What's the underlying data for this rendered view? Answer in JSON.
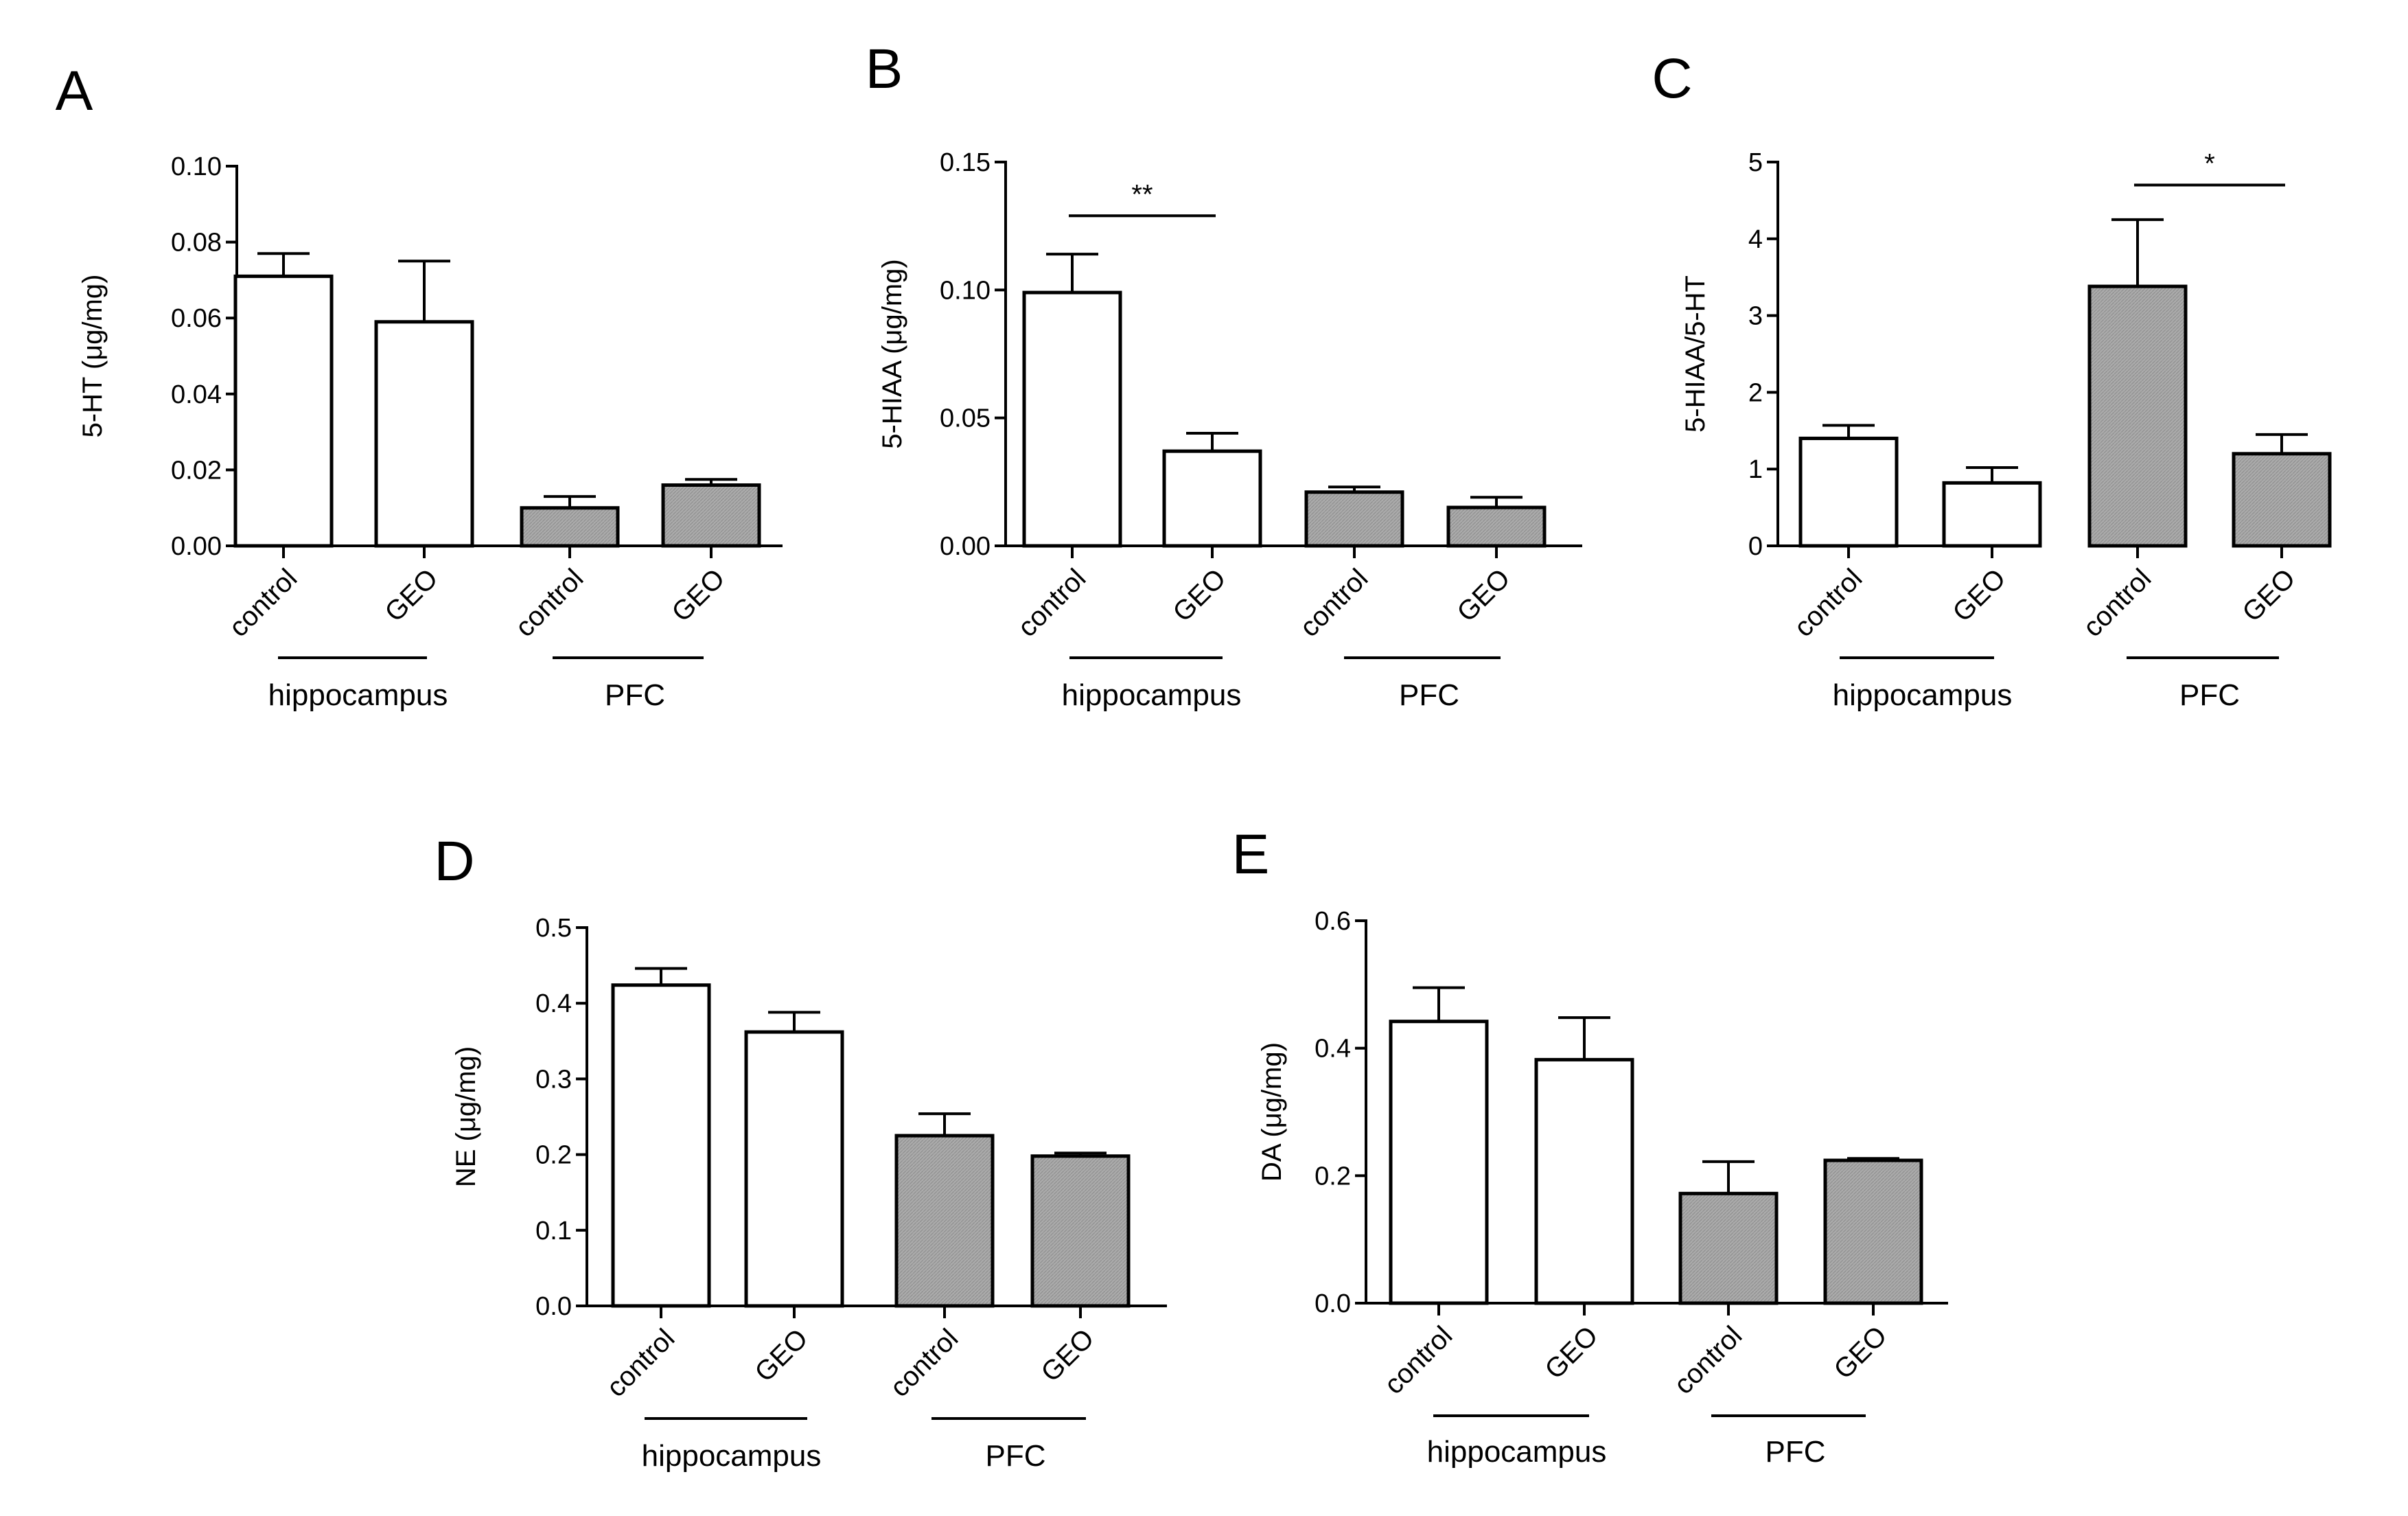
{
  "figure": {
    "panels": [
      "A",
      "B",
      "C",
      "D",
      "E"
    ]
  },
  "colors": {
    "axis": "#000000",
    "control_fill": "#ffffff",
    "pfc_fill": "#a8a8a8",
    "bar_stroke": "#000000"
  },
  "chart_data": [
    {
      "panel": "A",
      "type": "bar",
      "categories": [
        "control",
        "GEO",
        "control",
        "GEO"
      ],
      "groups": [
        {
          "label": "hippocampus",
          "indices": [
            0,
            1
          ]
        },
        {
          "label": "PFC",
          "indices": [
            2,
            3
          ]
        }
      ],
      "values": [
        0.071,
        0.059,
        0.01,
        0.016
      ],
      "errors": [
        0.006,
        0.016,
        0.003,
        0.0015
      ],
      "fills": [
        "white",
        "white",
        "gray",
        "gray"
      ],
      "ylabel": "5-HT (μg/mg)",
      "ylim": [
        0,
        0.1
      ],
      "yticks": [
        0.0,
        0.02,
        0.04,
        0.06,
        0.08,
        0.1
      ],
      "ytick_labels": [
        "0.00",
        "0.02",
        "0.04",
        "0.06",
        "0.08",
        "0.10"
      ],
      "significance": []
    },
    {
      "panel": "B",
      "type": "bar",
      "categories": [
        "control",
        "GEO",
        "control",
        "GEO"
      ],
      "groups": [
        {
          "label": "hippocampus",
          "indices": [
            0,
            1
          ]
        },
        {
          "label": "PFC",
          "indices": [
            2,
            3
          ]
        }
      ],
      "values": [
        0.099,
        0.037,
        0.021,
        0.015
      ],
      "errors": [
        0.015,
        0.007,
        0.002,
        0.004
      ],
      "fills": [
        "white",
        "white",
        "gray",
        "gray"
      ],
      "ylabel": "5-HIAA (μg/mg)",
      "ylim": [
        0,
        0.15
      ],
      "yticks": [
        0.0,
        0.05,
        0.1,
        0.15
      ],
      "ytick_labels": [
        "0.00",
        "0.05",
        "0.10",
        "0.15"
      ],
      "significance": [
        {
          "from": 0,
          "to": 1,
          "label": "**",
          "y": 0.129
        }
      ]
    },
    {
      "panel": "C",
      "type": "bar",
      "categories": [
        "control",
        "GEO",
        "control",
        "GEO"
      ],
      "groups": [
        {
          "label": "hippocampus",
          "indices": [
            0,
            1
          ]
        },
        {
          "label": "PFC",
          "indices": [
            2,
            3
          ]
        }
      ],
      "values": [
        1.4,
        0.82,
        3.38,
        1.2
      ],
      "errors": [
        0.17,
        0.2,
        0.87,
        0.25
      ],
      "fills": [
        "white",
        "white",
        "gray",
        "gray"
      ],
      "ylabel": "5-HIAA/5-HT",
      "ylim": [
        0,
        5
      ],
      "yticks": [
        0,
        1,
        2,
        3,
        4,
        5
      ],
      "ytick_labels": [
        "0",
        "1",
        "2",
        "3",
        "4",
        "5"
      ],
      "significance": [
        {
          "from": 2,
          "to": 3,
          "label": "*",
          "y": 4.7
        }
      ]
    },
    {
      "panel": "D",
      "type": "bar",
      "categories": [
        "control",
        "GEO",
        "control",
        "GEO"
      ],
      "groups": [
        {
          "label": "hippocampus",
          "indices": [
            0,
            1
          ]
        },
        {
          "label": "PFC",
          "indices": [
            2,
            3
          ]
        }
      ],
      "values": [
        0.424,
        0.362,
        0.225,
        0.198
      ],
      "errors": [
        0.022,
        0.026,
        0.029,
        0.004
      ],
      "fills": [
        "white",
        "white",
        "gray",
        "gray"
      ],
      "ylabel": "NE (μg/mg)",
      "ylim": [
        0,
        0.5
      ],
      "yticks": [
        0.0,
        0.1,
        0.2,
        0.3,
        0.4,
        0.5
      ],
      "ytick_labels": [
        "0.0",
        "0.1",
        "0.2",
        "0.3",
        "0.4",
        "0.5"
      ],
      "significance": []
    },
    {
      "panel": "E",
      "type": "bar",
      "categories": [
        "control",
        "GEO",
        "control",
        "GEO"
      ],
      "groups": [
        {
          "label": "hippocampus",
          "indices": [
            0,
            1
          ]
        },
        {
          "label": "PFC",
          "indices": [
            2,
            3
          ]
        }
      ],
      "values": [
        0.442,
        0.382,
        0.172,
        0.224
      ],
      "errors": [
        0.053,
        0.066,
        0.05,
        0.003
      ],
      "fills": [
        "white",
        "white",
        "gray",
        "gray"
      ],
      "ylabel": "DA (μg/mg)",
      "ylim": [
        0,
        0.6
      ],
      "yticks": [
        0.0,
        0.2,
        0.4,
        0.6
      ],
      "ytick_labels": [
        "0.0",
        "0.2",
        "0.4",
        "0.6"
      ],
      "significance": []
    }
  ]
}
